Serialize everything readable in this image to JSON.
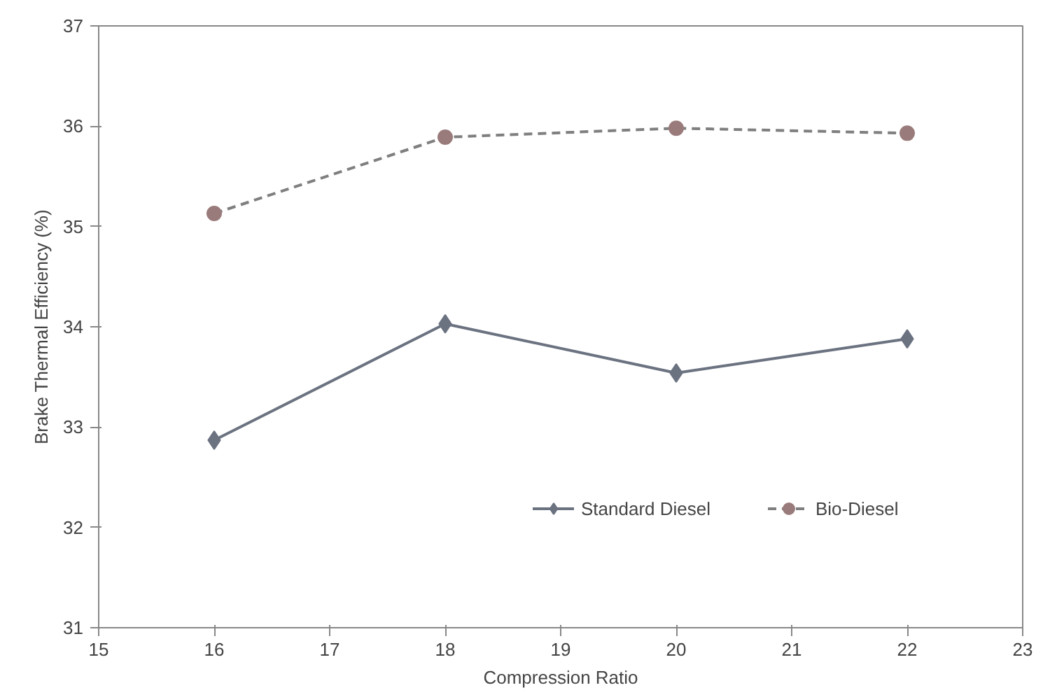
{
  "chart_data": {
    "type": "line",
    "xlabel": "Compression Ratio",
    "ylabel": "Brake Thermal Efficiency (%)",
    "x": [
      16,
      18,
      20,
      22
    ],
    "series": [
      {
        "name": "Standard Diesel",
        "color": "#6b7280",
        "marker": "diamond",
        "line_style": "solid",
        "values": [
          32.87,
          34.03,
          33.54,
          33.88
        ]
      },
      {
        "name": "Bio-Diesel",
        "color": "#9a7b7b",
        "marker": "circle",
        "line_style": "dashed",
        "values": [
          35.13,
          35.89,
          35.98,
          35.93
        ]
      }
    ],
    "xlim": [
      15,
      23
    ],
    "xticks": [
      15,
      16,
      17,
      18,
      19,
      20,
      21,
      22,
      23
    ],
    "ylim": [
      31,
      37
    ],
    "yticks": [
      31,
      32,
      33,
      34,
      35,
      36,
      37
    ],
    "grid": false,
    "legend": "bottom"
  }
}
